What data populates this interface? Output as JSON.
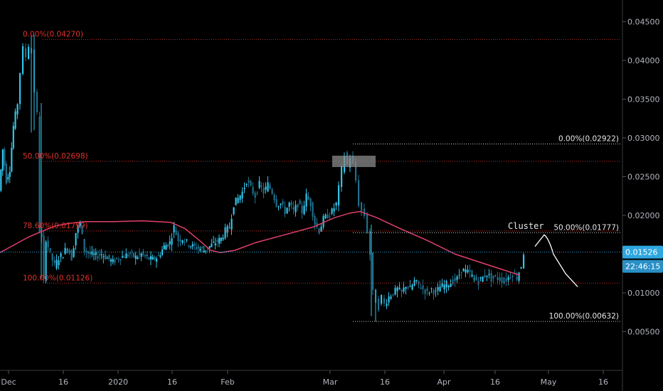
{
  "chart_data": {
    "type": "candlestick",
    "x_ticks": [
      "Dec",
      "16",
      "2020",
      "16",
      "Feb",
      "Mar",
      "16",
      "Apr",
      "16",
      "May",
      "16"
    ],
    "y_ticks": [
      "0.04500",
      "0.04000",
      "0.03500",
      "0.03000",
      "0.02500",
      "0.02000",
      "0.01500",
      "0.01000",
      "0.00500"
    ],
    "ylim": [
      0.0,
      0.0475
    ],
    "last_price": "0.01526",
    "countdown": "22:46:15",
    "annotation": "Cluster",
    "fib_levels_left": [
      {
        "label": "0.00%(0.04270)",
        "price": 0.0427
      },
      {
        "label": "50.00%(0.02698)",
        "price": 0.02698
      },
      {
        "label": "78.60%(0.01799)",
        "price": 0.01799
      },
      {
        "label": "100.00%(0.01126)",
        "price": 0.01126
      }
    ],
    "fib_levels_right": [
      {
        "label": "0.00%(0.02922)",
        "price": 0.02922
      },
      {
        "label": "50.00%(0.01777)",
        "price": 0.01777
      },
      {
        "label": "100.00%(0.00632)",
        "price": 0.00632
      }
    ],
    "price_segments": [
      [
        0,
        0.0232
      ],
      [
        5,
        0.0285
      ],
      [
        10,
        0.0245
      ],
      [
        15,
        0.026
      ],
      [
        20,
        0.0315
      ],
      [
        26,
        0.0345
      ],
      [
        30,
        0.0385
      ],
      [
        34,
        0.0415
      ],
      [
        38,
        0.0405
      ],
      [
        42,
        0.042
      ],
      [
        46,
        0.041
      ],
      [
        50,
        0.036
      ],
      [
        54,
        0.033
      ],
      [
        57,
        0.018
      ],
      [
        60,
        0.017
      ],
      [
        63,
        0.0115
      ],
      [
        66,
        0.017
      ],
      [
        72,
        0.015
      ],
      [
        78,
        0.0135
      ],
      [
        84,
        0.0145
      ],
      [
        90,
        0.015
      ],
      [
        96,
        0.016
      ],
      [
        102,
        0.0145
      ],
      [
        108,
        0.0178
      ],
      [
        114,
        0.019
      ],
      [
        120,
        0.0155
      ],
      [
        128,
        0.015
      ],
      [
        136,
        0.0148
      ],
      [
        144,
        0.015
      ],
      [
        152,
        0.0145
      ],
      [
        160,
        0.014
      ],
      [
        168,
        0.0145
      ],
      [
        176,
        0.0148
      ],
      [
        184,
        0.015
      ],
      [
        192,
        0.0146
      ],
      [
        200,
        0.015
      ],
      [
        208,
        0.0145
      ],
      [
        216,
        0.0143
      ],
      [
        224,
        0.0147
      ],
      [
        232,
        0.016
      ],
      [
        240,
        0.0165
      ],
      [
        246,
        0.0185
      ],
      [
        252,
        0.0168
      ],
      [
        258,
        0.017
      ],
      [
        264,
        0.0165
      ],
      [
        272,
        0.016
      ],
      [
        280,
        0.0158
      ],
      [
        288,
        0.0155
      ],
      [
        296,
        0.016
      ],
      [
        304,
        0.0165
      ],
      [
        312,
        0.017
      ],
      [
        318,
        0.018
      ],
      [
        324,
        0.0185
      ],
      [
        330,
        0.0215
      ],
      [
        336,
        0.0222
      ],
      [
        342,
        0.023
      ],
      [
        348,
        0.0245
      ],
      [
        354,
        0.0235
      ],
      [
        360,
        0.0225
      ],
      [
        366,
        0.024
      ],
      [
        372,
        0.023
      ],
      [
        378,
        0.024
      ],
      [
        384,
        0.023
      ],
      [
        390,
        0.0215
      ],
      [
        396,
        0.0215
      ],
      [
        402,
        0.0205
      ],
      [
        408,
        0.0215
      ],
      [
        414,
        0.0205
      ],
      [
        420,
        0.0215
      ],
      [
        426,
        0.0205
      ],
      [
        432,
        0.0225
      ],
      [
        438,
        0.0215
      ],
      [
        444,
        0.019
      ],
      [
        450,
        0.018
      ],
      [
        456,
        0.0195
      ],
      [
        462,
        0.02
      ],
      [
        468,
        0.0205
      ],
      [
        474,
        0.0215
      ],
      [
        478,
        0.0235
      ],
      [
        482,
        0.026
      ],
      [
        486,
        0.0278
      ],
      [
        490,
        0.0265
      ],
      [
        494,
        0.0275
      ],
      [
        498,
        0.0265
      ],
      [
        502,
        0.0245
      ],
      [
        506,
        0.0215
      ],
      [
        510,
        0.0205
      ],
      [
        514,
        0.02
      ],
      [
        518,
        0.018
      ],
      [
        522,
        0.015
      ],
      [
        526,
        0.01
      ],
      [
        530,
        0.009
      ],
      [
        534,
        0.0082
      ],
      [
        538,
        0.0095
      ],
      [
        542,
        0.0085
      ],
      [
        548,
        0.0095
      ],
      [
        554,
        0.01
      ],
      [
        560,
        0.0105
      ],
      [
        566,
        0.01
      ],
      [
        572,
        0.011
      ],
      [
        578,
        0.0105
      ],
      [
        584,
        0.0115
      ],
      [
        590,
        0.011
      ],
      [
        596,
        0.0105
      ],
      [
        602,
        0.01
      ],
      [
        608,
        0.0105
      ],
      [
        614,
        0.01
      ],
      [
        620,
        0.0108
      ],
      [
        626,
        0.011
      ],
      [
        632,
        0.0112
      ],
      [
        638,
        0.0115
      ],
      [
        644,
        0.0118
      ],
      [
        650,
        0.013
      ],
      [
        656,
        0.0128
      ],
      [
        662,
        0.0125
      ],
      [
        668,
        0.0118
      ],
      [
        674,
        0.0115
      ],
      [
        680,
        0.012
      ],
      [
        686,
        0.0125
      ],
      [
        692,
        0.0118
      ],
      [
        698,
        0.012
      ],
      [
        704,
        0.0118
      ],
      [
        710,
        0.0115
      ],
      [
        716,
        0.012
      ],
      [
        722,
        0.0125
      ],
      [
        728,
        0.012
      ],
      [
        734,
        0.0135
      ],
      [
        738,
        0.0152
      ]
    ],
    "ma_points": [
      [
        0,
        0.0152
      ],
      [
        20,
        0.0162
      ],
      [
        40,
        0.0172
      ],
      [
        60,
        0.018
      ],
      [
        80,
        0.0187
      ],
      [
        100,
        0.019
      ],
      [
        120,
        0.0192
      ],
      [
        160,
        0.0192
      ],
      [
        200,
        0.0193
      ],
      [
        240,
        0.0191
      ],
      [
        260,
        0.0183
      ],
      [
        280,
        0.0168
      ],
      [
        296,
        0.0155
      ],
      [
        310,
        0.0152
      ],
      [
        330,
        0.0155
      ],
      [
        360,
        0.0165
      ],
      [
        400,
        0.0175
      ],
      [
        440,
        0.0185
      ],
      [
        470,
        0.0197
      ],
      [
        492,
        0.0203
      ],
      [
        506,
        0.0205
      ],
      [
        530,
        0.0197
      ],
      [
        560,
        0.0184
      ],
      [
        600,
        0.0168
      ],
      [
        640,
        0.015
      ],
      [
        680,
        0.0138
      ],
      [
        710,
        0.0129
      ],
      [
        730,
        0.0123
      ]
    ],
    "projection_points": [
      [
        752,
        0.016
      ],
      [
        765,
        0.0175
      ],
      [
        778,
        0.015
      ],
      [
        795,
        0.0125
      ],
      [
        812,
        0.0108
      ]
    ]
  }
}
